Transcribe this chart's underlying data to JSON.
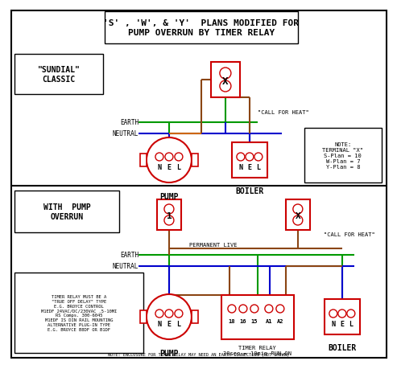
{
  "title": "'S' , 'W', & 'Y'  PLANS MODIFIED FOR\nPUMP OVERRUN BY TIMER RELAY",
  "bg_color": "#ffffff",
  "white": "#ffffff",
  "black": "#000000",
  "red": "#cc0000",
  "green": "#009900",
  "blue": "#0000cc",
  "brown": "#8B4513",
  "orange": "#cc6600",
  "top_section_label": "\"SUNDIAL\"\nCLASSIC",
  "bottom_section_label": "WITH  PUMP\nOVERRUN",
  "note_text": "NOTE:\nTERMINAL \"X\"\nS-Plan = 10\nW-Plan = 7\nY-Plan = 8",
  "timer_note": "NOTE: ENCLOSURE FOR TIMER RELAY MAY NEED AN EARTH CONNECTION (NOT SHOWN)",
  "timer_relay_label": "TIMER RELAY\n30sec = 10min RUN-ON",
  "bottom_note_text": "TIMER RELAY MUST BE A\n\"TRUE OFF DELAY\" TYPE\nE.G. BROYCE CONTROL\nM1EDF 24VAC/DC/230VAC .5-10MI\nRS Comps. 300-6045\nM1EDF IS DIN RAIL MOUNTING\nALTERNATIVE PLUG-IN TYPE\nE.G. BROYCE B8DF OR B1DF"
}
